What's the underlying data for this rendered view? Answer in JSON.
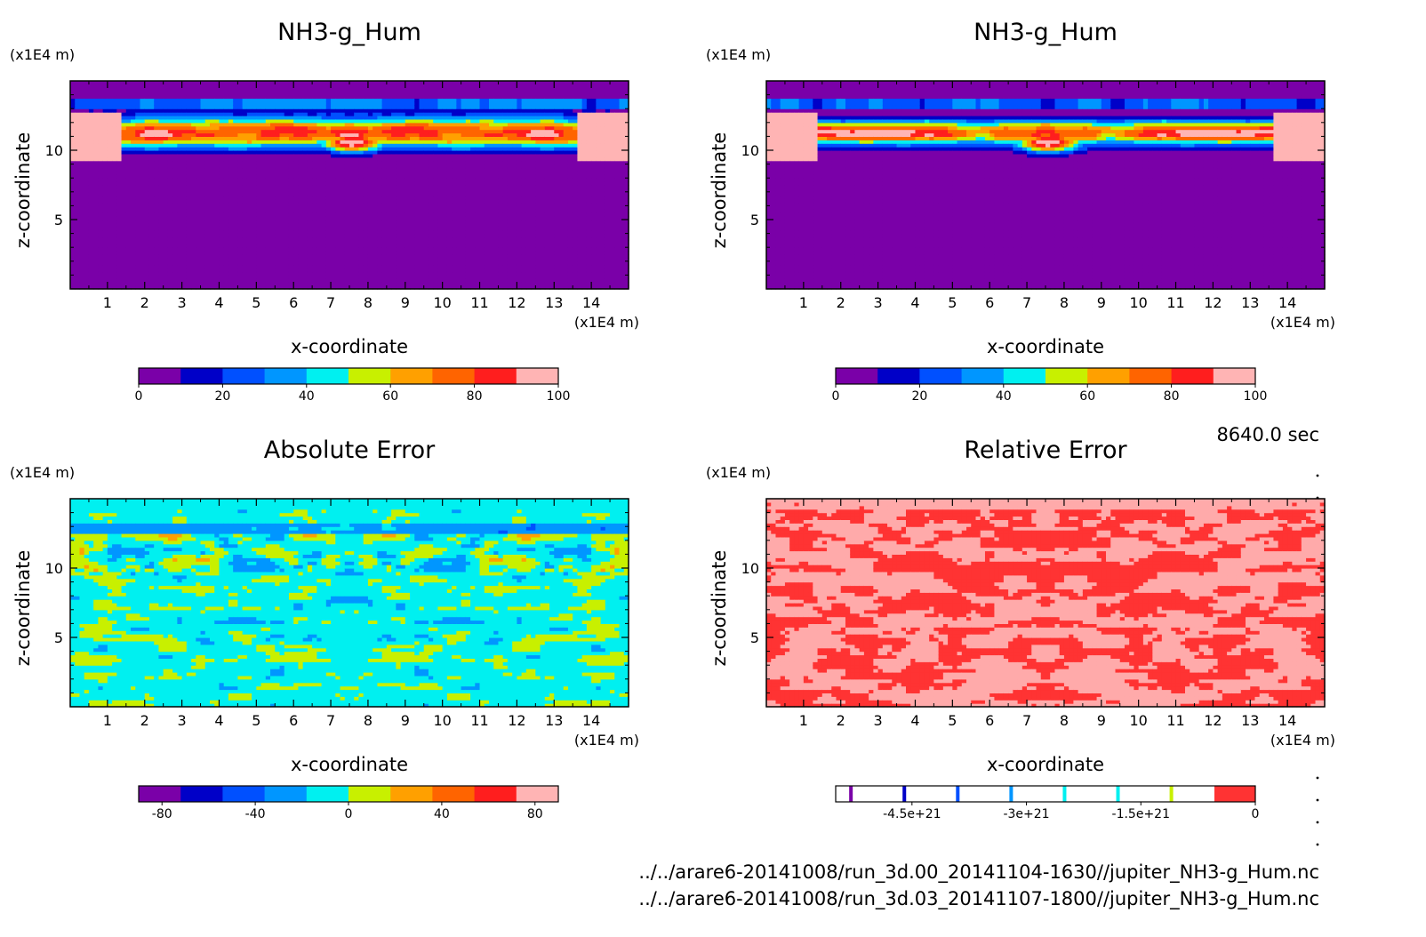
{
  "time_label": "8640.0 sec",
  "files": [
    "../../arare6-20141008/run_3d.00_20141104-1630//jupiter_NH3-g_Hum.nc",
    "../../arare6-20141008/run_3d.03_20141107-1800//jupiter_NH3-g_Hum.nc"
  ],
  "chart_data": [
    {
      "type": "heatmap",
      "title": "NH3-g_Hum",
      "xlabel": "x-coordinate",
      "ylabel": "z-coordinate",
      "x_unit": "(x1E4 m)",
      "y_unit": "(x1E4 m)",
      "xlim": [
        0,
        15
      ],
      "ylim": [
        0,
        15
      ],
      "x_ticks": [
        1,
        2,
        3,
        4,
        5,
        6,
        7,
        8,
        9,
        10,
        11,
        12,
        13,
        14
      ],
      "y_ticks": [
        5,
        10
      ],
      "colorbar": {
        "kind": "filled",
        "levels": [
          0,
          10,
          20,
          30,
          40,
          50,
          60,
          70,
          80,
          90,
          100
        ],
        "labels": [
          "0",
          "20",
          "40",
          "60",
          "80",
          "100"
        ],
        "colors": [
          "#7a00a8",
          "#0000c8",
          "#0050ff",
          "#0096ff",
          "#00f0f0",
          "#c8f000",
          "#ffa000",
          "#ff6400",
          "#ff1e1e",
          "#ffb4b4"
        ]
      },
      "field_range": [
        0,
        100
      ],
      "field_description": "background 0-10 below z=8.5; band of 90-100 near z=10-12"
    },
    {
      "type": "heatmap",
      "title": "NH3-g_Hum",
      "xlabel": "x-coordinate",
      "ylabel": "z-coordinate",
      "x_unit": "(x1E4 m)",
      "y_unit": "(x1E4 m)",
      "xlim": [
        0,
        15
      ],
      "ylim": [
        0,
        15
      ],
      "x_ticks": [
        1,
        2,
        3,
        4,
        5,
        6,
        7,
        8,
        9,
        10,
        11,
        12,
        13,
        14
      ],
      "y_ticks": [
        5,
        10
      ],
      "colorbar": {
        "kind": "filled",
        "levels": [
          0,
          10,
          20,
          30,
          40,
          50,
          60,
          70,
          80,
          90,
          100
        ],
        "labels": [
          "0",
          "20",
          "40",
          "60",
          "80",
          "100"
        ],
        "colors": [
          "#7a00a8",
          "#0000c8",
          "#0050ff",
          "#0096ff",
          "#00f0f0",
          "#c8f000",
          "#ffa000",
          "#ff6400",
          "#ff1e1e",
          "#ffb4b4"
        ]
      },
      "field_range": [
        0,
        100
      ]
    },
    {
      "type": "heatmap",
      "title": "Absolute Error",
      "xlabel": "x-coordinate",
      "ylabel": "z-coordinate",
      "x_unit": "(x1E4 m)",
      "y_unit": "(x1E4 m)",
      "xlim": [
        0,
        15
      ],
      "ylim": [
        0,
        15
      ],
      "x_ticks": [
        1,
        2,
        3,
        4,
        5,
        6,
        7,
        8,
        9,
        10,
        11,
        12,
        13,
        14
      ],
      "y_ticks": [
        5,
        10
      ],
      "colorbar": {
        "kind": "filled",
        "levels": [
          -90,
          -70,
          -50,
          -30,
          -10,
          0,
          10,
          30,
          50,
          70,
          90
        ],
        "labels": [
          "-80",
          "-40",
          "0",
          "40",
          "80"
        ],
        "colors": [
          "#7a00a8",
          "#0000c8",
          "#0050ff",
          "#0096ff",
          "#00f0f0",
          "#c8f000",
          "#ffa000",
          "#ff6400",
          "#ff1e1e",
          "#ffb4b4"
        ]
      },
      "field_range": [
        -90,
        90
      ]
    },
    {
      "type": "heatmap",
      "title": "Relative Error",
      "xlabel": "x-coordinate",
      "ylabel": "z-coordinate",
      "x_unit": "(x1E4 m)",
      "y_unit": "(x1E4 m)",
      "xlim": [
        0,
        15
      ],
      "ylim": [
        0,
        15
      ],
      "x_ticks": [
        1,
        2,
        3,
        4,
        5,
        6,
        7,
        8,
        9,
        10,
        11,
        12,
        13,
        14
      ],
      "y_ticks": [
        5,
        10
      ],
      "colorbar": {
        "kind": "sparse",
        "range": [
          -5.5e+21,
          0
        ],
        "labels": [
          "-4.5e+21",
          "-3e+21",
          "-1.5e+21",
          "0"
        ],
        "label_values": [
          -4.5e+21,
          -3e+21,
          -1.5e+21,
          0
        ],
        "line_values": [
          -5.3e+21,
          -4.6e+21,
          -3.9e+21,
          -3.2e+21,
          -2.5e+21,
          -1.8e+21,
          -1.1e+21,
          -4e+20
        ],
        "line_colors": [
          "#7a00a8",
          "#0000c8",
          "#0050ff",
          "#0096ff",
          "#00f0f0",
          "#00f0f0",
          "#c8f000",
          "#ff6400",
          "#ffa000"
        ],
        "end_color": "#ff3333"
      },
      "field_colors": [
        "#ff3333",
        "#ffaaaa"
      ]
    }
  ]
}
